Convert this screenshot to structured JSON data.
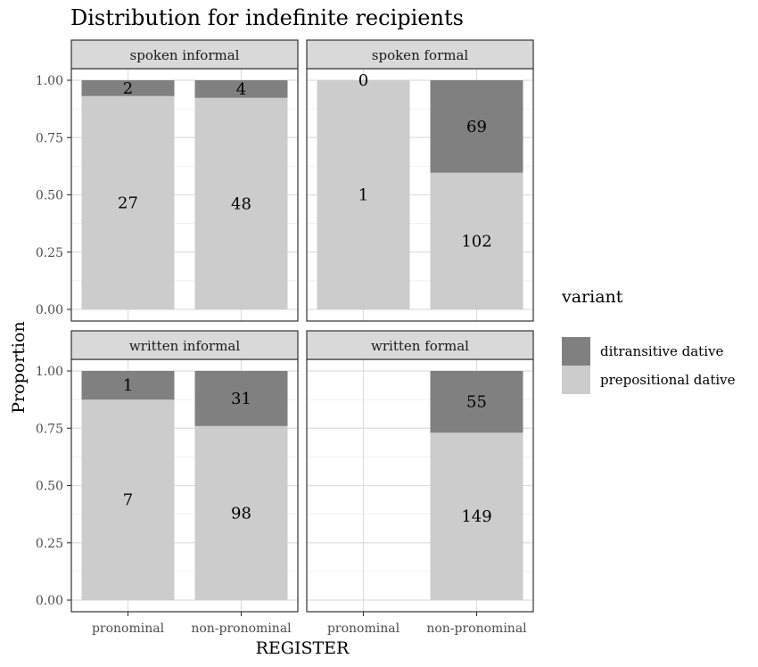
{
  "chart_data": {
    "type": "bar",
    "stacked": true,
    "position": "fill",
    "title": "Distribution for indefinite recipients",
    "xlabel": "REGISTER",
    "ylabel": "Proportion",
    "ylim": [
      0,
      1
    ],
    "yticks": [
      "0.00",
      "0.25",
      "0.50",
      "0.75",
      "1.00"
    ],
    "yticks_values": [
      0,
      0.25,
      0.5,
      0.75,
      1
    ],
    "categories": [
      "pronominal",
      "non-pronominal"
    ],
    "grid": true,
    "legend": {
      "title": "variant",
      "position": "right",
      "entries": [
        {
          "name": "ditransitive dative",
          "color": "#808080"
        },
        {
          "name": "prepositional dative",
          "color": "#cccccc"
        }
      ]
    },
    "facets": [
      {
        "name": "spoken informal",
        "series": [
          {
            "name": "ditransitive dative",
            "values": [
              2,
              4
            ]
          },
          {
            "name": "prepositional dative",
            "values": [
              27,
              48
            ]
          }
        ]
      },
      {
        "name": "spoken formal",
        "series": [
          {
            "name": "ditransitive dative",
            "values": [
              0,
              69
            ]
          },
          {
            "name": "prepositional dative",
            "values": [
              1,
              102
            ]
          }
        ]
      },
      {
        "name": "written informal",
        "series": [
          {
            "name": "ditransitive dative",
            "values": [
              1,
              31
            ]
          },
          {
            "name": "prepositional dative",
            "values": [
              7,
              98
            ]
          }
        ]
      },
      {
        "name": "written formal",
        "series": [
          {
            "name": "ditransitive dative",
            "values": [
              null,
              55
            ]
          },
          {
            "name": "prepositional dative",
            "values": [
              null,
              149
            ]
          }
        ]
      }
    ]
  }
}
